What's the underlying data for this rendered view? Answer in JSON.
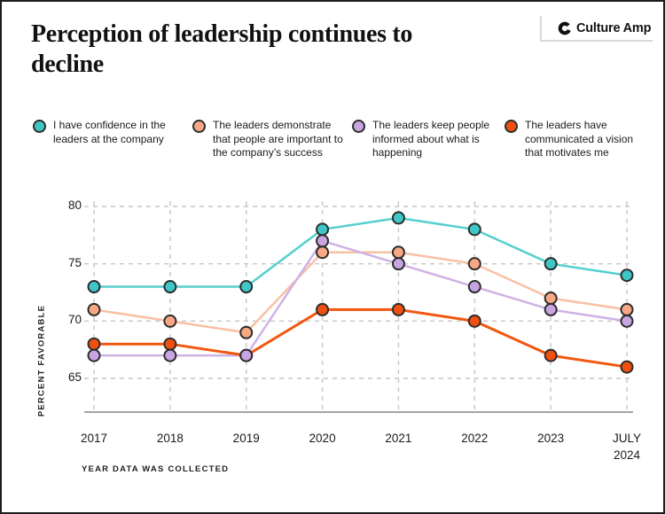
{
  "header": {
    "title": "Perception of leadership continues to decline",
    "logo_text": "Culture Amp"
  },
  "chart_data": {
    "type": "line",
    "title": "Perception of leadership continues to decline",
    "categories": [
      "2017",
      "2018",
      "2019",
      "2020",
      "2021",
      "2022",
      "2023",
      "July 2024"
    ],
    "x_tick_labels": [
      "2017",
      "2018",
      "2019",
      "2020",
      "2021",
      "2022",
      "2023",
      "JULY\n2024"
    ],
    "series": [
      {
        "name": "I have confidence in the leaders at the company",
        "values": [
          73,
          73,
          73,
          78,
          79,
          78,
          75,
          74
        ],
        "dot_color": "#3FC6C6",
        "line_color": "#56CFCF"
      },
      {
        "name": "The leaders demonstrate that people are important to the company’s success",
        "values": [
          71,
          70,
          69,
          76,
          76,
          75,
          72,
          71
        ],
        "dot_color": "#F8A884",
        "line_color": "#F9C0A4"
      },
      {
        "name": "The leaders keep people informed about what is happening",
        "values": [
          67,
          67,
          67,
          77,
          75,
          73,
          71,
          70
        ],
        "dot_color": "#C8A4E0",
        "line_color": "#CFB2E5"
      },
      {
        "name": "The leaders have communicated a vision that motivates me",
        "values": [
          68,
          68,
          67,
          71,
          71,
          70,
          67,
          66
        ],
        "dot_color": "#F0500F",
        "line_color": "#F1570F"
      }
    ],
    "xlabel": "YEAR DATA WAS COLLECTED",
    "ylabel": "PERCENT FAVORABLE",
    "y_ticks": [
      80,
      75,
      70,
      65
    ],
    "ylim": [
      62,
      81
    ],
    "grid": "dashed",
    "legend_position": "top"
  },
  "colors": {
    "outline": "#2D2D2D",
    "grid": "#C6C6C6",
    "axis": "#6F6F6F",
    "text": "#1A1A1A",
    "border": "#1C1C1C"
  }
}
